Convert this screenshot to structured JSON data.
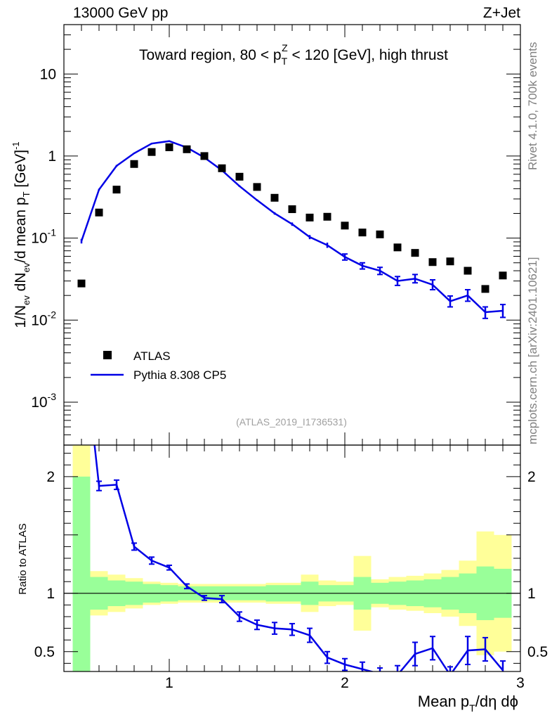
{
  "header": {
    "left": "13000 GeV pp",
    "right": "Z+Jet"
  },
  "side_labels": {
    "rivet": "Rivet 4.1.0,  700k events",
    "source": "mcplots.cern.ch [arXiv:2401.10621]"
  },
  "watermark": "(ATLAS_2019_I1736531)",
  "colors": {
    "mc": "#0000e6",
    "data": "#000000",
    "band_inner": "#99ff99",
    "band_outer": "#ffff99"
  },
  "chart_data": {
    "type": "line",
    "title": "Toward region, 80 < p_T^Z < 120 [GeV], high thrust",
    "title_parts": {
      "a": "Toward region, 80 < p",
      "sub": "T",
      "sup": "Z",
      "b": " < 120 [GeV], high thrust"
    },
    "xlabel": "Mean p_T/dη dϕ",
    "xlabel_parts": {
      "a": "Mean p",
      "sub": "T",
      "b": "/dη dϕ"
    },
    "ylabel": "1/N_ev dN_ev/d mean p_T [GeV]^-1",
    "ylabel_parts": {
      "a": "1/N",
      "s1": "ev",
      "b": " dN",
      "s2": "ev",
      "c": "/d mean p",
      "s3": "T",
      "d": " [GeV]",
      "e": "-1"
    },
    "xlim": [
      0.4,
      3.0
    ],
    "ylim": [
      0.0003,
      40
    ],
    "yscale": "log",
    "x_ticks": [
      "1",
      "2",
      "3"
    ],
    "y_ticks": [
      {
        "value": 10,
        "base": "10",
        "exp": ""
      },
      {
        "value": 1,
        "base": "1",
        "exp": ""
      },
      {
        "value": 0.1,
        "base": "10",
        "exp": "-1"
      },
      {
        "value": 0.01,
        "base": "10",
        "exp": "-2"
      },
      {
        "value": 0.001,
        "base": "10",
        "exp": "-3"
      }
    ],
    "legend": [
      {
        "name": "ATLAS",
        "style": "marker"
      },
      {
        "name": "Pythia 8.308 CP5",
        "style": "line"
      }
    ],
    "series": [
      {
        "name": "ATLAS",
        "x": [
          0.5,
          0.6,
          0.7,
          0.8,
          0.9,
          1.0,
          1.1,
          1.2,
          1.3,
          1.4,
          1.5,
          1.6,
          1.7,
          1.8,
          1.9,
          2.0,
          2.1,
          2.2,
          2.3,
          2.4,
          2.5,
          2.6,
          2.7,
          2.8,
          2.9
        ],
        "values": [
          0.028,
          0.205,
          0.39,
          0.8,
          1.12,
          1.28,
          1.21,
          1.0,
          0.71,
          0.56,
          0.42,
          0.31,
          0.225,
          0.178,
          0.182,
          0.142,
          0.117,
          0.111,
          0.077,
          0.066,
          0.051,
          0.052,
          0.04,
          0.024,
          0.035
        ]
      },
      {
        "name": "Pythia 8.308 CP5",
        "x": [
          0.5,
          0.6,
          0.7,
          0.8,
          0.9,
          1.0,
          1.1,
          1.2,
          1.3,
          1.4,
          1.5,
          1.6,
          1.7,
          1.8,
          1.9,
          2.0,
          2.1,
          2.2,
          2.3,
          2.4,
          2.5,
          2.6,
          2.7,
          2.8,
          2.9
        ],
        "values": [
          0.092,
          0.39,
          0.76,
          1.08,
          1.42,
          1.52,
          1.27,
          0.96,
          0.67,
          0.43,
          0.29,
          0.2,
          0.148,
          0.103,
          0.082,
          0.059,
          0.046,
          0.04,
          0.03,
          0.032,
          0.027,
          0.017,
          0.02,
          0.0125,
          0.013
        ],
        "err_lo": [
          0.086,
          0.38,
          0.74,
          1.06,
          1.39,
          1.49,
          1.24,
          0.94,
          0.655,
          0.42,
          0.283,
          0.193,
          0.141,
          0.097,
          0.076,
          0.054,
          0.042,
          0.036,
          0.0265,
          0.0285,
          0.0235,
          0.0145,
          0.017,
          0.0105,
          0.0108
        ],
        "err_hi": [
          0.098,
          0.4,
          0.78,
          1.1,
          1.45,
          1.55,
          1.3,
          0.98,
          0.685,
          0.44,
          0.297,
          0.207,
          0.155,
          0.109,
          0.088,
          0.064,
          0.05,
          0.044,
          0.034,
          0.036,
          0.031,
          0.0197,
          0.0235,
          0.0145,
          0.0155
        ]
      }
    ],
    "ratio": {
      "ylabel": "Ratio to ATLAS",
      "ylim": [
        0.33,
        2.27
      ],
      "y_ticks": [
        "0.5",
        "1",
        "2"
      ],
      "bins": [
        0.45,
        0.55,
        0.65,
        0.75,
        0.85,
        0.95,
        1.05,
        1.15,
        1.25,
        1.35,
        1.45,
        1.55,
        1.65,
        1.75,
        1.85,
        1.95,
        2.05,
        2.15,
        2.25,
        2.35,
        2.45,
        2.55,
        2.65,
        2.75,
        2.85,
        2.95
      ],
      "band_inner_lo": [
        0.0,
        0.86,
        0.89,
        0.9,
        0.92,
        0.93,
        0.94,
        0.94,
        0.94,
        0.94,
        0.94,
        0.93,
        0.93,
        0.9,
        0.93,
        0.93,
        0.86,
        0.91,
        0.9,
        0.89,
        0.88,
        0.86,
        0.83,
        0.77,
        0.79
      ],
      "band_inner_hi": [
        2.0,
        1.14,
        1.11,
        1.1,
        1.08,
        1.07,
        1.06,
        1.06,
        1.06,
        1.06,
        1.06,
        1.07,
        1.07,
        1.1,
        1.07,
        1.07,
        1.14,
        1.09,
        1.1,
        1.11,
        1.12,
        1.14,
        1.17,
        1.23,
        1.21
      ],
      "band_outer_lo": [
        0.0,
        0.81,
        0.84,
        0.87,
        0.9,
        0.91,
        0.92,
        0.92,
        0.92,
        0.92,
        0.92,
        0.91,
        0.91,
        0.84,
        0.89,
        0.9,
        0.68,
        0.88,
        0.86,
        0.85,
        0.83,
        0.8,
        0.72,
        0.47,
        0.5
      ],
      "band_outer_hi": [
        2.4,
        1.19,
        1.16,
        1.13,
        1.1,
        1.09,
        1.08,
        1.08,
        1.08,
        1.08,
        1.08,
        1.09,
        1.09,
        1.16,
        1.11,
        1.1,
        1.32,
        1.12,
        1.14,
        1.15,
        1.17,
        1.2,
        1.28,
        1.53,
        1.5
      ],
      "mc_x": [
        0.5,
        0.6,
        0.7,
        0.8,
        0.9,
        1.0,
        1.1,
        1.2,
        1.3,
        1.4,
        1.5,
        1.6,
        1.7,
        1.8,
        1.9,
        2.0,
        2.1,
        2.2,
        2.3,
        2.4,
        2.5,
        2.6,
        2.7,
        2.8,
        2.9
      ],
      "mc": [
        3.3,
        1.92,
        1.93,
        1.4,
        1.28,
        1.22,
        1.06,
        0.96,
        0.95,
        0.8,
        0.73,
        0.7,
        0.69,
        0.64,
        0.45,
        0.39,
        0.35,
        0.31,
        0.3,
        0.48,
        0.53,
        0.3,
        0.51,
        0.52,
        0.34
      ],
      "mc_err": [
        0.0,
        0.04,
        0.04,
        0.03,
        0.03,
        0.02,
        0.02,
        0.02,
        0.03,
        0.04,
        0.04,
        0.05,
        0.05,
        0.06,
        0.05,
        0.05,
        0.06,
        0.05,
        0.08,
        0.1,
        0.1,
        0.07,
        0.12,
        0.1,
        0.08
      ]
    }
  }
}
